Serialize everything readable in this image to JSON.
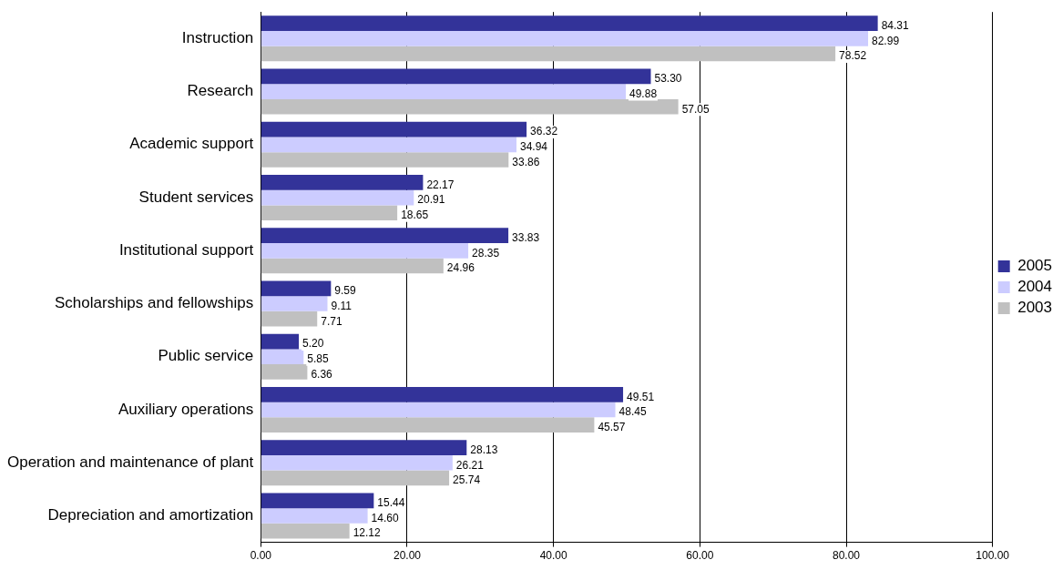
{
  "chart_data": {
    "type": "bar",
    "orientation": "horizontal",
    "categories": [
      "Instruction",
      "Research",
      "Academic support",
      "Student services",
      "Institutional support",
      "Scholarships and fellowships",
      "Public service",
      "Auxiliary operations",
      "Operation and maintenance of plant",
      "Depreciation and amortization"
    ],
    "series": [
      {
        "name": "2005",
        "color": "#333399",
        "values": [
          84.31,
          53.3,
          36.32,
          22.17,
          33.83,
          9.59,
          5.2,
          49.51,
          28.13,
          15.44
        ],
        "value_labels": [
          "84.31",
          "53.30",
          "36.32",
          "22.17",
          "33.83",
          "9.59",
          "5.20",
          "49.51",
          "28.13",
          "15.44"
        ]
      },
      {
        "name": "2004",
        "color": "#ccccff",
        "values": [
          82.99,
          49.88,
          34.94,
          20.91,
          28.35,
          9.11,
          5.85,
          48.45,
          26.21,
          14.6
        ],
        "value_labels": [
          "82.99",
          "49.88",
          "34.94",
          "20.91",
          "28.35",
          "9.11",
          "5.85",
          "48.45",
          "26.21",
          "14.60"
        ]
      },
      {
        "name": "2003",
        "color": "#c0c0c0",
        "values": [
          78.52,
          57.05,
          33.86,
          18.65,
          24.96,
          7.71,
          6.36,
          45.57,
          25.74,
          12.12
        ],
        "value_labels": [
          "78.52",
          "57.05",
          "33.86",
          "18.65",
          "24.96",
          "7.71",
          "6.36",
          "45.57",
          "25.74",
          "12.12"
        ]
      }
    ],
    "xlim": [
      0,
      100
    ],
    "xticks": [
      {
        "value": 0,
        "label": "0.00"
      },
      {
        "value": 20,
        "label": "20.00"
      },
      {
        "value": 40,
        "label": "40.00"
      },
      {
        "value": 60,
        "label": "60.00"
      },
      {
        "value": 80,
        "label": "80.00"
      },
      {
        "value": 100,
        "label": "100.00"
      }
    ],
    "grid": "x",
    "legend": "right"
  }
}
